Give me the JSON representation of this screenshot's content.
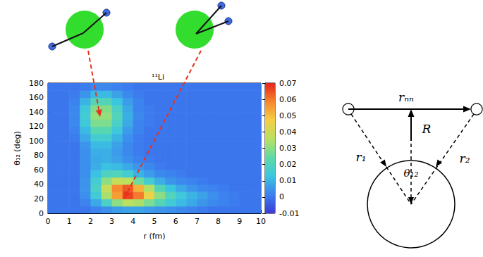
{
  "chart_data": {
    "type": "heatmap",
    "title": "¹¹Li",
    "x_label": "r (fm)",
    "y_label": "θ₁₂ (deg)",
    "xlim": [
      0,
      10
    ],
    "xticks": [
      0,
      1,
      2,
      3,
      4,
      5,
      6,
      7,
      8,
      9,
      10
    ],
    "ylim": [
      0,
      180
    ],
    "yticks": [
      0,
      20,
      40,
      60,
      80,
      100,
      120,
      140,
      160,
      180
    ],
    "grid": false,
    "cells": {
      "x": [
        0.25,
        0.75,
        1.25,
        1.75,
        2.25,
        2.75,
        3.25,
        3.75,
        4.25,
        4.75,
        5.25,
        5.75,
        6.25,
        6.75,
        7.25,
        7.75,
        8.25,
        8.75,
        9.25,
        9.75
      ],
      "y": [
        5,
        15,
        25,
        35,
        45,
        55,
        65,
        75,
        85,
        95,
        105,
        115,
        125,
        135,
        145,
        155,
        165,
        175
      ],
      "z": [
        [
          0,
          0,
          0,
          0,
          0.002,
          0.004,
          0.006,
          0.007,
          0.007,
          0.006,
          0.005,
          0.004,
          0.003,
          0.002,
          0.001,
          0,
          0,
          0,
          0,
          0
        ],
        [
          0,
          0,
          0,
          0.002,
          0.008,
          0.018,
          0.03,
          0.036,
          0.034,
          0.028,
          0.021,
          0.015,
          0.011,
          0.008,
          0.005,
          0.003,
          0.002,
          0.001,
          0,
          0
        ],
        [
          0,
          0,
          0,
          0.004,
          0.015,
          0.034,
          0.055,
          0.066,
          0.06,
          0.045,
          0.03,
          0.02,
          0.014,
          0.01,
          0.007,
          0.004,
          0.002,
          0.001,
          0,
          0
        ],
        [
          0,
          0,
          0,
          0.005,
          0.018,
          0.038,
          0.058,
          0.064,
          0.052,
          0.035,
          0.021,
          0.013,
          0.008,
          0.005,
          0.003,
          0.002,
          0.001,
          0,
          0,
          0
        ],
        [
          0,
          0,
          0,
          0.005,
          0.016,
          0.03,
          0.038,
          0.036,
          0.026,
          0.016,
          0.009,
          0.005,
          0.003,
          0.002,
          0.001,
          0,
          0,
          0,
          0,
          0
        ],
        [
          0,
          0,
          0,
          0.004,
          0.012,
          0.019,
          0.02,
          0.016,
          0.01,
          0.006,
          0.003,
          0.002,
          0.001,
          0,
          0,
          0,
          0,
          0,
          0,
          0
        ],
        [
          0,
          0,
          0,
          0.004,
          0.009,
          0.012,
          0.011,
          0.008,
          0.005,
          0.003,
          0.001,
          0,
          0,
          0,
          0,
          0,
          0,
          0,
          0,
          0
        ],
        [
          0,
          0,
          0,
          0.004,
          0.008,
          0.009,
          0.007,
          0.004,
          0.002,
          0.001,
          0,
          0,
          0,
          0,
          0,
          0,
          0,
          0,
          0,
          0
        ],
        [
          0,
          0,
          0,
          0.004,
          0.009,
          0.009,
          0.006,
          0.003,
          0.001,
          0,
          0,
          0,
          0,
          0,
          0,
          0,
          0,
          0,
          0,
          0
        ],
        [
          0,
          0,
          0,
          0.005,
          0.011,
          0.011,
          0.007,
          0.003,
          0.001,
          0,
          0,
          0,
          0,
          0,
          0,
          0,
          0,
          0,
          0,
          0
        ],
        [
          0,
          0,
          0.001,
          0.008,
          0.016,
          0.016,
          0.01,
          0.004,
          0.001,
          0,
          0,
          0,
          0,
          0,
          0,
          0,
          0,
          0,
          0,
          0
        ],
        [
          0,
          0,
          0.002,
          0.011,
          0.022,
          0.022,
          0.014,
          0.006,
          0.002,
          0,
          0,
          0,
          0,
          0,
          0,
          0,
          0,
          0,
          0,
          0
        ],
        [
          0,
          0,
          0.003,
          0.014,
          0.028,
          0.028,
          0.018,
          0.008,
          0.002,
          0.001,
          0,
          0,
          0,
          0,
          0,
          0,
          0,
          0,
          0,
          0
        ],
        [
          0,
          0,
          0.003,
          0.015,
          0.031,
          0.031,
          0.02,
          0.009,
          0.003,
          0.001,
          0,
          0,
          0,
          0,
          0,
          0,
          0,
          0,
          0,
          0
        ],
        [
          0,
          0,
          0.003,
          0.014,
          0.029,
          0.029,
          0.018,
          0.008,
          0.002,
          0.001,
          0,
          0,
          0,
          0,
          0,
          0,
          0,
          0,
          0,
          0
        ],
        [
          0,
          0,
          0.002,
          0.01,
          0.021,
          0.021,
          0.013,
          0.006,
          0.002,
          0,
          0,
          0,
          0,
          0,
          0,
          0,
          0,
          0,
          0,
          0
        ],
        [
          0,
          0,
          0.001,
          0.005,
          0.011,
          0.011,
          0.007,
          0.003,
          0.001,
          0,
          0,
          0,
          0,
          0,
          0,
          0,
          0,
          0,
          0,
          0
        ],
        [
          0,
          0,
          0,
          0.001,
          0.003,
          0.003,
          0.002,
          0.001,
          0,
          0,
          0,
          0,
          0,
          0,
          0,
          0,
          0,
          0,
          0,
          0
        ]
      ]
    },
    "colorbar": {
      "range": [
        -0.01,
        0.07
      ],
      "ticks": [
        -0.01,
        0,
        0.01,
        0.02,
        0.03,
        0.04,
        0.05,
        0.06,
        0.07
      ]
    }
  },
  "diagram": {
    "labels": {
      "r_nn": "rₙₙ",
      "R": "R",
      "r1": "r₁",
      "r2": "r₂",
      "theta12": "θ₁₂"
    }
  }
}
